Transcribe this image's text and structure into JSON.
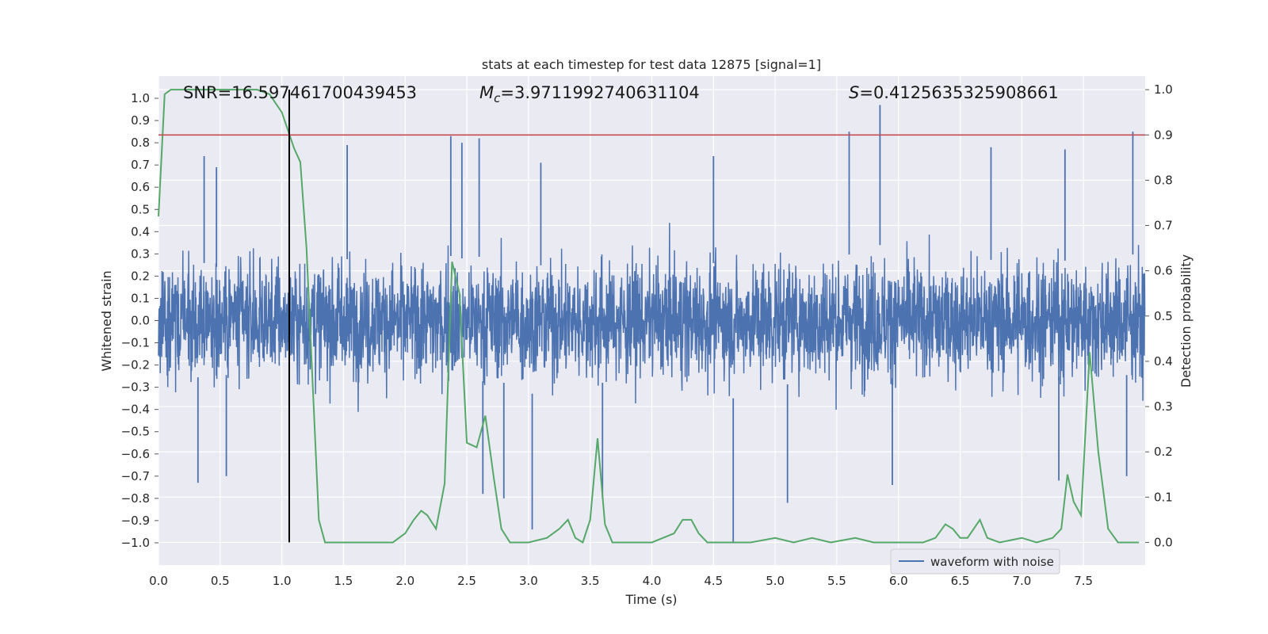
{
  "chart_data": {
    "type": "line",
    "title": "stats at each timestep for test data 12875 [signal=1]",
    "xlabel": "Time (s)",
    "ylabel": "Whitened strain",
    "y2label": "Detection probability",
    "xlim": [
      0.0,
      8.0
    ],
    "ylim": [
      -1.1,
      1.1
    ],
    "y2lim": [
      -0.05,
      1.03
    ],
    "xticks": [
      0.0,
      0.5,
      1.0,
      1.5,
      2.0,
      2.5,
      3.0,
      3.5,
      4.0,
      4.5,
      5.0,
      5.5,
      6.0,
      6.5,
      7.0,
      7.5
    ],
    "xtick_labels": [
      "0.0",
      "0.5",
      "1.0",
      "1.5",
      "2.0",
      "2.5",
      "3.0",
      "3.5",
      "4.0",
      "4.5",
      "5.0",
      "5.5",
      "6.0",
      "6.5",
      "7.0",
      "7.5"
    ],
    "yticks": [
      -1.0,
      -0.9,
      -0.8,
      -0.7,
      -0.6,
      -0.5,
      -0.4,
      -0.3,
      -0.2,
      -0.1,
      0.0,
      0.1,
      0.2,
      0.3,
      0.4,
      0.5,
      0.6,
      0.7,
      0.8,
      0.9,
      1.0
    ],
    "ytick_labels": [
      "−1.0",
      "−0.9",
      "−0.8",
      "−0.7",
      "−0.6",
      "−0.5",
      "−0.4",
      "−0.3",
      "−0.2",
      "−0.1",
      "0.0",
      "0.1",
      "0.2",
      "0.3",
      "0.4",
      "0.5",
      "0.6",
      "0.7",
      "0.8",
      "0.9",
      "1.0"
    ],
    "y2ticks": [
      0.0,
      0.1,
      0.2,
      0.3,
      0.4,
      0.5,
      0.6,
      0.7,
      0.8,
      0.9,
      1.0
    ],
    "y2tick_labels": [
      "0.0",
      "0.1",
      "0.2",
      "0.3",
      "0.4",
      "0.5",
      "0.6",
      "0.7",
      "0.8",
      "0.9",
      "1.0"
    ],
    "grid": true,
    "legend": {
      "position": "lower-right",
      "entries": [
        "waveform with noise"
      ]
    },
    "annotations": {
      "snr": "SNR=16.597461700439453",
      "mc_symbol": "M",
      "mc_subscript": "c",
      "mc_value": "=3.9711992740631104",
      "s_symbol": "S",
      "s_value": "=0.4125635325908661"
    },
    "vline_x": 1.06,
    "vline_y2_range": [
      0.0,
      1.0
    ],
    "threshold_y2": 0.9,
    "waveform_series": {
      "name": "waveform with noise",
      "color": "#4c72b0",
      "envelope_max": 0.63,
      "envelope_min": -0.63,
      "spikes": [
        {
          "t": 0.37,
          "v": 0.74
        },
        {
          "t": 0.47,
          "v": 0.69
        },
        {
          "t": 1.53,
          "v": 0.79
        },
        {
          "t": 2.37,
          "v": 0.83
        },
        {
          "t": 2.46,
          "v": 0.8
        },
        {
          "t": 2.6,
          "v": 0.82
        },
        {
          "t": 3.1,
          "v": 0.71
        },
        {
          "t": 4.5,
          "v": 0.74
        },
        {
          "t": 5.6,
          "v": 0.85
        },
        {
          "t": 5.85,
          "v": 0.97
        },
        {
          "t": 6.75,
          "v": 0.78
        },
        {
          "t": 7.35,
          "v": 0.77
        },
        {
          "t": 7.9,
          "v": 0.85
        },
        {
          "t": 0.32,
          "v": -0.73
        },
        {
          "t": 0.55,
          "v": -0.7
        },
        {
          "t": 2.63,
          "v": -0.78
        },
        {
          "t": 2.8,
          "v": -0.8
        },
        {
          "t": 3.03,
          "v": -0.94
        },
        {
          "t": 3.6,
          "v": -0.8
        },
        {
          "t": 4.66,
          "v": -1.0
        },
        {
          "t": 5.1,
          "v": -0.82
        },
        {
          "t": 5.95,
          "v": -0.74
        },
        {
          "t": 7.3,
          "v": -0.72
        },
        {
          "t": 7.85,
          "v": -0.7
        }
      ]
    },
    "probability_series": {
      "name": "detection probability",
      "color": "#55a868",
      "x": [
        0.0,
        0.05,
        0.1,
        0.2,
        0.4,
        0.6,
        0.8,
        0.9,
        0.95,
        1.0,
        1.05,
        1.1,
        1.15,
        1.2,
        1.25,
        1.3,
        1.35,
        1.5,
        1.7,
        1.9,
        2.0,
        2.07,
        2.13,
        2.18,
        2.25,
        2.32,
        2.38,
        2.44,
        2.5,
        2.58,
        2.65,
        2.72,
        2.78,
        2.85,
        3.0,
        3.15,
        3.25,
        3.32,
        3.38,
        3.44,
        3.5,
        3.56,
        3.62,
        3.68,
        3.8,
        4.0,
        4.18,
        4.25,
        4.32,
        4.38,
        4.45,
        4.6,
        4.8,
        5.0,
        5.15,
        5.3,
        5.45,
        5.65,
        5.8,
        6.0,
        6.2,
        6.3,
        6.38,
        6.44,
        6.5,
        6.56,
        6.66,
        6.72,
        6.82,
        7.0,
        7.12,
        7.25,
        7.32,
        7.37,
        7.42,
        7.48,
        7.55,
        7.62,
        7.7,
        7.78,
        7.85,
        7.95
      ],
      "y": [
        0.72,
        0.99,
        1.0,
        1.0,
        1.0,
        1.0,
        1.0,
        0.99,
        0.97,
        0.95,
        0.91,
        0.87,
        0.84,
        0.65,
        0.35,
        0.05,
        0.0,
        0.0,
        0.0,
        0.0,
        0.02,
        0.05,
        0.07,
        0.06,
        0.03,
        0.13,
        0.62,
        0.55,
        0.22,
        0.21,
        0.28,
        0.14,
        0.03,
        0.0,
        0.0,
        0.01,
        0.03,
        0.05,
        0.01,
        0.0,
        0.05,
        0.23,
        0.04,
        0.0,
        0.0,
        0.0,
        0.02,
        0.05,
        0.05,
        0.02,
        0.0,
        0.0,
        0.0,
        0.01,
        0.0,
        0.01,
        0.0,
        0.01,
        0.0,
        0.0,
        0.0,
        0.01,
        0.04,
        0.03,
        0.01,
        0.01,
        0.05,
        0.01,
        0.0,
        0.01,
        0.0,
        0.01,
        0.03,
        0.15,
        0.09,
        0.06,
        0.42,
        0.2,
        0.03,
        0.0,
        0.0,
        0.0
      ]
    }
  }
}
